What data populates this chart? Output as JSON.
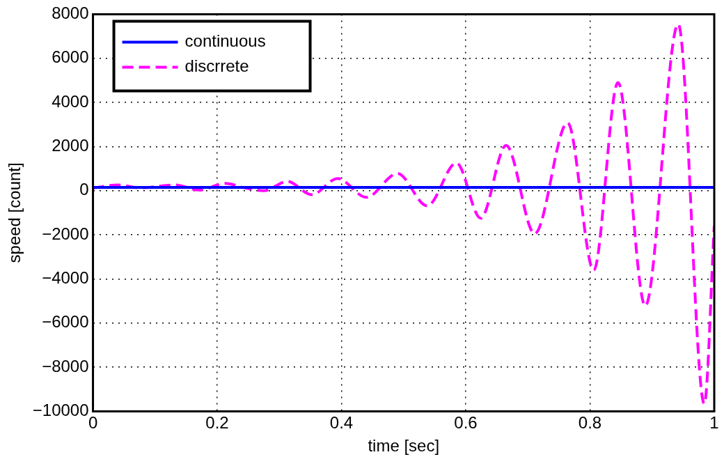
{
  "chart_data": {
    "type": "line",
    "xlabel": "time [sec]",
    "ylabel": "speed [count]",
    "xlim": [
      0,
      1
    ],
    "xticks": [
      0,
      0.2,
      0.4,
      0.6,
      0.8,
      1
    ],
    "ylim": [
      -10000,
      8000
    ],
    "yticks": [
      {
        "value": -10000,
        "label": "−10000"
      },
      {
        "value": -8000,
        "label": "−8000"
      },
      {
        "value": -6000,
        "label": "−6000"
      },
      {
        "value": -4000,
        "label": "−4000"
      },
      {
        "value": -2000,
        "label": "−2000"
      },
      0,
      2000,
      4000,
      6000,
      8000
    ],
    "grid": true,
    "legend": "top left",
    "marker": "none",
    "series": [
      {
        "name": "continuous",
        "color": "#0000ff",
        "line_style": "solid",
        "x": [
          0,
          1
        ],
        "values": [
          150,
          150
        ]
      },
      {
        "name": "discrrete",
        "color": "#ff00ff",
        "line_style": "dashed",
        "x": [
          0,
          0.04,
          0.075,
          0.132,
          0.171,
          0.213,
          0.244,
          0.275,
          0.313,
          0.352,
          0.394,
          0.44,
          0.49,
          0.538,
          0.585,
          0.624,
          0.665,
          0.711,
          0.764,
          0.806,
          0.845,
          0.889,
          0.942,
          0.984,
          1
        ],
        "values": [
          120,
          260,
          130,
          260,
          30,
          330,
          130,
          0,
          420,
          -180,
          550,
          -300,
          780,
          -690,
          1260,
          -1250,
          2050,
          -1950,
          3080,
          -3600,
          4900,
          -5220,
          7550,
          -9660,
          -1600
        ]
      }
    ]
  }
}
